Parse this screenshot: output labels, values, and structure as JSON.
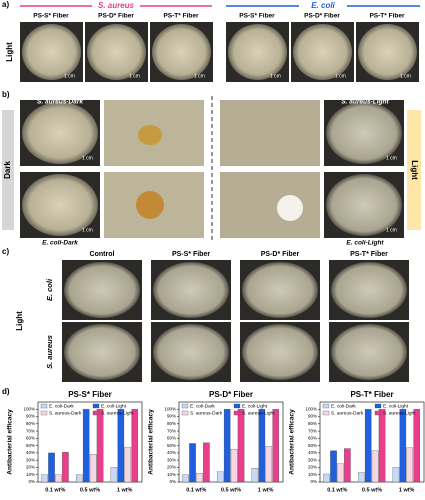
{
  "panel_labels": [
    "a)",
    "b)",
    "c)",
    "d)"
  ],
  "panel_a": {
    "groups": [
      "S. aureus",
      "E. coli"
    ],
    "fibers": [
      "PS-S* Fiber",
      "PS-D* Fiber",
      "PS-T* Fiber",
      "PS-S* Fiber",
      "PS-D* Fiber",
      "PS-T* Fiber"
    ],
    "row_label": "Light",
    "scale": "1 cm"
  },
  "panel_b": {
    "left": "Dark",
    "right": "Light",
    "labels": [
      "S. aureus-Dark",
      "E. coli-Dark",
      "S. aureus-Light",
      "E. coli-Light"
    ],
    "scale": "1 cm"
  },
  "panel_c": {
    "columns": [
      "Control",
      "PS-S* Fiber",
      "PS-D* Fiber",
      "PS-T* Fiber"
    ],
    "rows": [
      "E. coli",
      "S. aureus"
    ],
    "side": "Light"
  },
  "chart_data": [
    {
      "type": "bar",
      "title": "PS-S* Fiber",
      "ylabel": "Antibacterial efficacy",
      "categories": [
        "0.1 wt%",
        "0.5 wt%",
        "1 wt%"
      ],
      "series": [
        {
          "name": "E. coli-Dark",
          "color": "#c9d8f5",
          "values": [
            10,
            10,
            20
          ]
        },
        {
          "name": "E. coli-Light",
          "color": "#1f5fe0",
          "values": [
            40,
            100,
            100
          ]
        },
        {
          "name": "S. aureus-Dark",
          "color": "#f7d6e4",
          "values": [
            10,
            38,
            48
          ]
        },
        {
          "name": "S. aureus-Light",
          "color": "#e83e8c",
          "values": [
            41,
            100,
            100
          ]
        }
      ],
      "ylim": [
        0,
        110
      ],
      "yticks": [
        {
          "value": 0,
          "label": "0%"
        },
        {
          "value": 10,
          "label": "10%"
        },
        {
          "value": 20,
          "label": "20%"
        },
        {
          "value": 30,
          "label": "30%"
        },
        {
          "value": 40,
          "label": "40%"
        },
        {
          "value": 50,
          "label": "50%"
        },
        {
          "value": 60,
          "label": "60%"
        },
        {
          "value": 70,
          "label": "70%"
        },
        {
          "value": 80,
          "label": "80%"
        },
        {
          "value": 90,
          "label": "90%"
        },
        {
          "value": 100,
          "label": "100%"
        }
      ],
      "legend": "top"
    },
    {
      "type": "bar",
      "title": "PS-D* Fiber",
      "ylabel": "Antibacterial efficacy",
      "categories": [
        "0.1 wt%",
        "0.5 wt%",
        "1 wt%"
      ],
      "series": [
        {
          "name": "E. coli-Dark",
          "color": "#c9d8f5",
          "values": [
            10,
            14,
            19
          ]
        },
        {
          "name": "E. coli-Light",
          "color": "#1f5fe0",
          "values": [
            53,
            100,
            100
          ]
        },
        {
          "name": "S. aureus-Dark",
          "color": "#f7d6e4",
          "values": [
            12,
            45,
            49
          ]
        },
        {
          "name": "S. aureus-Light",
          "color": "#e83e8c",
          "values": [
            54,
            100,
            100
          ]
        }
      ],
      "ylim": [
        0,
        110
      ],
      "yticks": [
        {
          "value": 0,
          "label": "0%"
        },
        {
          "value": 10,
          "label": "10%"
        },
        {
          "value": 20,
          "label": "20%"
        },
        {
          "value": 30,
          "label": "30%"
        },
        {
          "value": 40,
          "label": "40%"
        },
        {
          "value": 50,
          "label": "50%"
        },
        {
          "value": 60,
          "label": "60%"
        },
        {
          "value": 70,
          "label": "70%"
        },
        {
          "value": 80,
          "label": "80%"
        },
        {
          "value": 90,
          "label": "90%"
        },
        {
          "value": 100,
          "label": "100%"
        }
      ],
      "legend": "top"
    },
    {
      "type": "bar",
      "title": "PS-T* Fiber",
      "ylabel": "Antibacterial efficacy",
      "categories": [
        "0.1 wt%",
        "0.5 wt%",
        "1 wt%"
      ],
      "series": [
        {
          "name": "E. coli-Dark",
          "color": "#c9d8f5",
          "values": [
            11,
            13,
            20
          ]
        },
        {
          "name": "E. coli-Light",
          "color": "#1f5fe0",
          "values": [
            43,
            100,
            100
          ]
        },
        {
          "name": "S. aureus-Dark",
          "color": "#f7d6e4",
          "values": [
            25,
            43,
            47
          ]
        },
        {
          "name": "S. aureus-Light",
          "color": "#e83e8c",
          "values": [
            46,
            100,
            100
          ]
        }
      ],
      "ylim": [
        0,
        110
      ],
      "yticks": [
        {
          "value": 0,
          "label": "0%"
        },
        {
          "value": 10,
          "label": "10%"
        },
        {
          "value": 20,
          "label": "20%"
        },
        {
          "value": 30,
          "label": "30%"
        },
        {
          "value": 40,
          "label": "40%"
        },
        {
          "value": 50,
          "label": "50%"
        },
        {
          "value": 60,
          "label": "60%"
        },
        {
          "value": 70,
          "label": "70%"
        },
        {
          "value": 80,
          "label": "80%"
        },
        {
          "value": 90,
          "label": "90%"
        },
        {
          "value": 100,
          "label": "100%"
        }
      ],
      "legend": "top"
    }
  ]
}
